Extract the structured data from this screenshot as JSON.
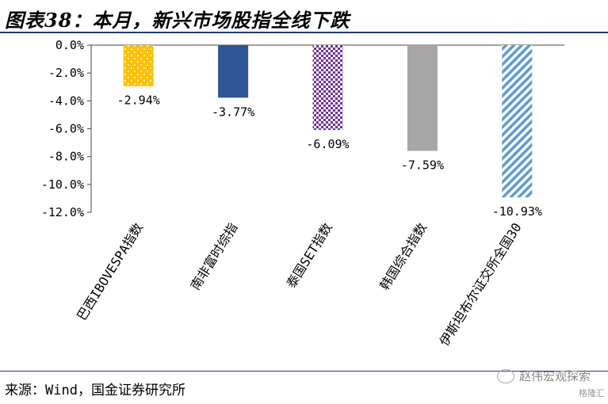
{
  "header": {
    "title": "图表38：本月，新兴市场股指全线下跌"
  },
  "footer": {
    "source": "来源：Wind，国金证券研究所"
  },
  "watermark": {
    "text": "赵伟宏观探索",
    "logo": "格隆汇",
    "icon": "wechat-icon"
  },
  "chart_data": {
    "type": "bar",
    "categories": [
      "巴西IBOVESPA指数",
      "南非富时综指",
      "泰国SET指数",
      "韩国综合指数",
      "伊斯坦布尔证交所全国30"
    ],
    "values": [
      -2.94,
      -3.77,
      -6.09,
      -7.59,
      -10.93
    ],
    "data_labels": [
      "-2.94%",
      "-3.77%",
      "-6.09%",
      "-7.59%",
      "-10.93%"
    ],
    "yticks": [
      "0.0%",
      "-2.0%",
      "-4.0%",
      "-6.0%",
      "-8.0%",
      "-10.0%",
      "-12.0%"
    ],
    "ylim": [
      -12,
      0
    ],
    "grid": false,
    "colors": [
      "#FFC000",
      "#2F5597",
      "#7030A0",
      "#A6A6A6",
      "#5B9BD5"
    ],
    "patterns": [
      "dots",
      "solid",
      "checker",
      "solid",
      "diagonal-stripes"
    ],
    "title": "",
    "xlabel": "",
    "ylabel": ""
  }
}
